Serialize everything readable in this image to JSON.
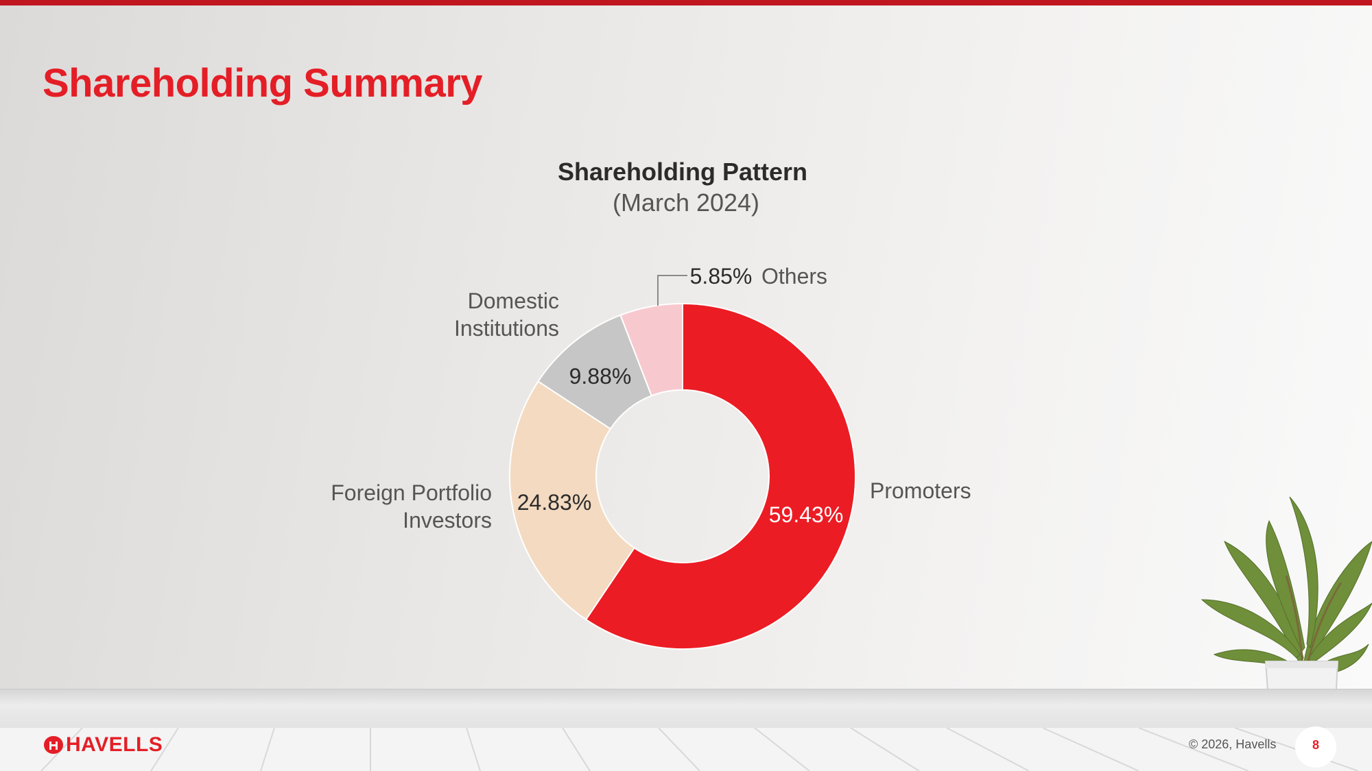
{
  "page": {
    "title": "Shareholding Summary"
  },
  "chart_data": {
    "type": "pie",
    "donut": true,
    "title": "Shareholding Pattern",
    "subtitle": "(March 2024)",
    "series": [
      {
        "name": "Promoters",
        "value": 59.43,
        "label": "59.43%",
        "color": "#ec1c24"
      },
      {
        "name": "Foreign Portfolio Investors",
        "value": 24.83,
        "label": "24.83%",
        "color": "#f3dac0"
      },
      {
        "name": "Domestic Institutions",
        "value": 9.88,
        "label": "9.88%",
        "color": "#c6c6c6"
      },
      {
        "name": "Others",
        "value": 5.85,
        "label": "5.85%",
        "color": "#f7c9ce"
      }
    ],
    "category_labels": {
      "promoters": "Promoters",
      "fpi_line1": "Foreign Portfolio",
      "fpi_line2": "Investors",
      "di_line1": "Domestic",
      "di_line2": "Institutions",
      "others": "Others"
    }
  },
  "footer": {
    "brand": "HAVELLS",
    "copyright": "© 2026, Havells",
    "page_number": "8"
  },
  "colors": {
    "accent": "#e41e26",
    "top_bar": "#c0161f"
  }
}
